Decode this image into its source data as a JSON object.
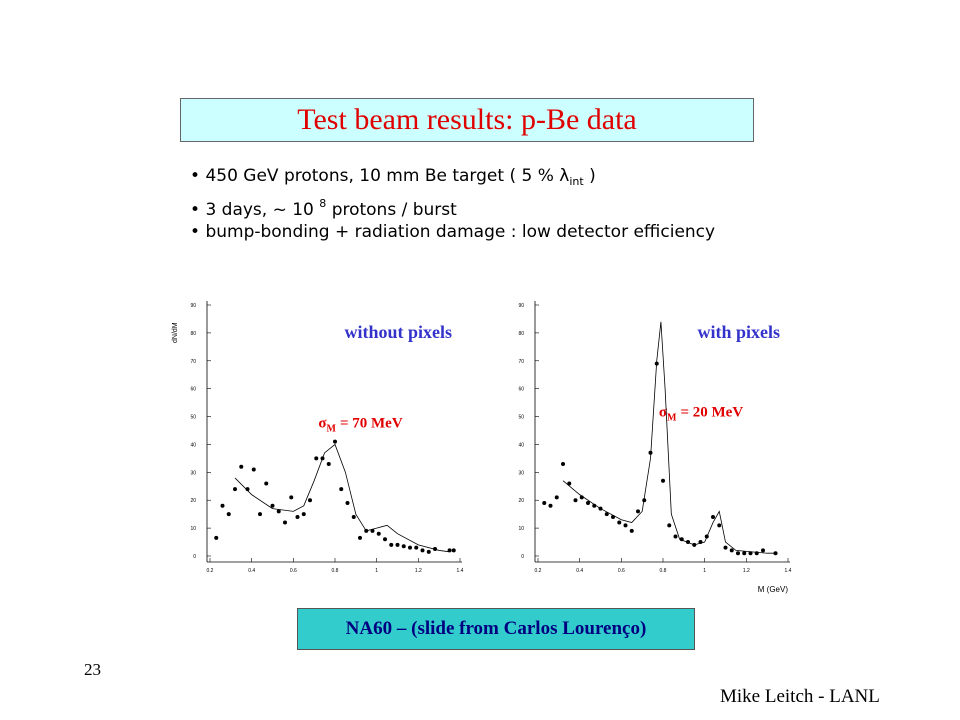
{
  "slide": {
    "title": "Test beam results: p-Be data",
    "bullets": [
      [
        "450 GeV protons, 10 mm Be target ( 5 %",
        "λ",
        "int",
        ")"
      ],
      [
        "3 days,  ~ 10",
        "8",
        "protons / burst"
      ],
      [
        "bump-bonding + radiation damage :  low detector efficiency"
      ]
    ],
    "caption": "NA60 – (slide from Carlos Lourenço)",
    "page_number": "23",
    "author": "Mike Leitch - LANL"
  },
  "chart_data": [
    {
      "type": "scatter",
      "title": "without pixels",
      "annotation": [
        "σ",
        "M",
        "= 70 MeV"
      ],
      "y_label": "dN/dM",
      "color": "#000000",
      "x": [
        0.23,
        0.26,
        0.29,
        0.32,
        0.35,
        0.38,
        0.41,
        0.44,
        0.47,
        0.5,
        0.53,
        0.56,
        0.59,
        0.62,
        0.65,
        0.68,
        0.71,
        0.74,
        0.77,
        0.8,
        0.83,
        0.86,
        0.89,
        0.92,
        0.95,
        0.98,
        1.01,
        1.04,
        1.07,
        1.1,
        1.13,
        1.16,
        1.19,
        1.22,
        1.25,
        1.28,
        1.35,
        1.37
      ],
      "values": [
        6.5,
        18,
        15,
        24,
        32,
        24,
        31,
        15,
        26,
        18,
        16,
        12,
        21,
        14,
        15,
        20,
        35,
        35,
        33,
        41,
        24,
        19,
        14,
        6.5,
        9,
        9,
        8,
        6,
        4,
        4,
        3.5,
        3,
        3,
        2,
        1.5,
        2.5,
        2,
        2
      ],
      "fit": {
        "color": "#000000",
        "x": [
          0.32,
          0.4,
          0.5,
          0.6,
          0.65,
          0.7,
          0.75,
          0.8,
          0.85,
          0.9,
          0.95,
          1.0,
          1.05,
          1.1,
          1.2,
          1.3,
          1.35
        ],
        "values": [
          28,
          22,
          17,
          16,
          18,
          27,
          37,
          40,
          30,
          15,
          9,
          10,
          11,
          8,
          4,
          2,
          1.5
        ]
      },
      "xlim": [
        0.2,
        1.4
      ],
      "ylim": [
        0,
        90
      ],
      "xticks": [
        0.2,
        0.4,
        0.6,
        0.8,
        1,
        1.2,
        1.4
      ],
      "yticks": [
        0,
        10,
        20,
        30,
        40,
        50,
        60,
        70,
        80,
        90
      ]
    },
    {
      "type": "scatter",
      "title": "with pixels",
      "annotation": [
        "σ",
        "M",
        "= 20 MeV"
      ],
      "x_label": "M (GeV)",
      "color": "#000000",
      "x": [
        0.23,
        0.26,
        0.29,
        0.32,
        0.35,
        0.38,
        0.41,
        0.44,
        0.47,
        0.5,
        0.53,
        0.56,
        0.59,
        0.62,
        0.65,
        0.68,
        0.71,
        0.74,
        0.77,
        0.8,
        0.83,
        0.86,
        0.89,
        0.92,
        0.95,
        0.98,
        1.01,
        1.04,
        1.07,
        1.1,
        1.13,
        1.16,
        1.19,
        1.22,
        1.25,
        1.28,
        1.34
      ],
      "values": [
        19,
        18,
        21,
        33,
        26,
        20,
        21,
        19,
        18,
        17,
        15,
        14,
        12,
        11,
        9,
        16,
        20,
        37,
        69,
        27,
        11,
        7,
        6,
        5,
        4,
        5,
        7,
        14,
        11,
        3,
        2,
        1,
        1,
        1,
        1,
        2,
        1
      ],
      "fit": {
        "color": "#000000",
        "x": [
          0.32,
          0.4,
          0.5,
          0.6,
          0.65,
          0.7,
          0.74,
          0.77,
          0.79,
          0.81,
          0.84,
          0.88,
          0.95,
          1.0,
          1.04,
          1.07,
          1.1,
          1.15,
          1.3,
          1.35
        ],
        "values": [
          27,
          22,
          17,
          13,
          12,
          16,
          35,
          70,
          84,
          60,
          15,
          6,
          4,
          5,
          12,
          16,
          5,
          2,
          1,
          1
        ]
      },
      "xlim": [
        0.2,
        1.4
      ],
      "ylim": [
        0,
        90
      ],
      "xticks": [
        0.2,
        0.4,
        0.6,
        0.8,
        1,
        1.2,
        1.4
      ],
      "yticks": [
        0,
        10,
        20,
        30,
        40,
        50,
        60,
        70,
        80,
        90
      ]
    }
  ]
}
